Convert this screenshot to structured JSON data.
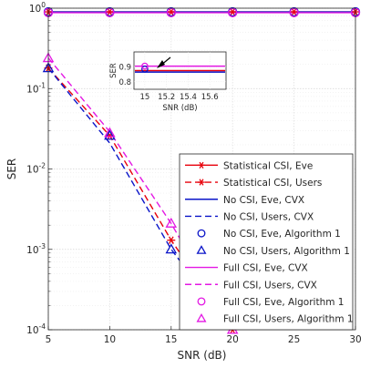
{
  "chart_data": {
    "type": "line",
    "xlabel": "SNR (dB)",
    "ylabel": "SER",
    "x_ticks": [
      5,
      10,
      15,
      20,
      25,
      30
    ],
    "y_ticks": [
      "10^-4",
      "10^-3",
      "10^-2",
      "10^-1",
      "10^0"
    ],
    "xlim": [
      5,
      30
    ],
    "ylim": [
      0.0001,
      1
    ],
    "yscale": "log",
    "grid": true,
    "legend_position": "inside lower-right",
    "series": [
      {
        "name": "Statistical CSI, Eve",
        "color": "#e8000b",
        "line": "solid",
        "marker": "asterisk",
        "x": [
          5,
          10,
          15,
          20,
          25,
          30
        ],
        "y": [
          0.9,
          0.9,
          0.9,
          0.9,
          0.9,
          0.9
        ]
      },
      {
        "name": "Statistical CSI, Users",
        "color": "#e8000b",
        "line": "dashed",
        "marker": "asterisk",
        "x": [
          5,
          10,
          15,
          20
        ],
        "y": [
          0.18,
          0.026,
          0.0013,
          0.0001
        ]
      },
      {
        "name": "No CSI, Eve, CVX",
        "color": "#0a14c8",
        "line": "solid",
        "marker": "none",
        "x": [
          5,
          10,
          15,
          20,
          25,
          30
        ],
        "y": [
          0.9,
          0.9,
          0.9,
          0.9,
          0.9,
          0.9
        ]
      },
      {
        "name": "No CSI, Users, CVX",
        "color": "#0a14c8",
        "line": "dashed",
        "marker": "none",
        "x": [
          5,
          10,
          15,
          20
        ],
        "y": [
          0.18,
          0.021,
          0.001,
          0.0001
        ]
      },
      {
        "name": "No CSI, Eve, Algorithm 1",
        "color": "#0a14c8",
        "line": "none",
        "marker": "circle",
        "x": [
          5,
          10,
          15,
          20,
          25,
          30
        ],
        "y": [
          0.9,
          0.9,
          0.9,
          0.9,
          0.9,
          0.9
        ]
      },
      {
        "name": "No CSI, Users, Algorithm 1",
        "color": "#0a14c8",
        "line": "none",
        "marker": "triangle",
        "x": [
          5,
          10,
          15
        ],
        "y": [
          0.18,
          0.026,
          0.001
        ]
      },
      {
        "name": "Full CSI, Eve, CVX",
        "color": "#e317e3",
        "line": "solid",
        "marker": "none",
        "x": [
          5,
          10,
          15,
          20,
          25,
          30
        ],
        "y": [
          0.88,
          0.88,
          0.88,
          0.88,
          0.88,
          0.88
        ]
      },
      {
        "name": "Full CSI, Users, CVX",
        "color": "#e317e3",
        "line": "dashed",
        "marker": "none",
        "x": [
          5,
          10,
          15,
          20
        ],
        "y": [
          0.24,
          0.029,
          0.0021,
          0.0001
        ]
      },
      {
        "name": "Full CSI, Eve, Algorithm 1",
        "color": "#e317e3",
        "line": "none",
        "marker": "circle",
        "x": [
          5,
          10,
          15,
          20,
          25,
          30
        ],
        "y": [
          0.88,
          0.88,
          0.88,
          0.88,
          0.88,
          0.88
        ]
      },
      {
        "name": "Full CSI, Users, Algorithm 1",
        "color": "#e317e3",
        "line": "none",
        "marker": "triangle",
        "x": [
          5,
          10,
          15,
          20
        ],
        "y": [
          0.24,
          0.028,
          0.0021,
          0.0001
        ]
      }
    ],
    "inset": {
      "xlabel": "SNR (dB)",
      "ylabel": "SER",
      "x_ticks": [
        "15",
        "15.2",
        "15.4",
        "15.6"
      ],
      "y_ticks": [
        "0.8",
        "0.9"
      ],
      "xlim": [
        14.9,
        15.75
      ],
      "ylim": [
        0.75,
        1.0
      ],
      "lines": [
        {
          "color": "#e8000b",
          "y": 0.875
        },
        {
          "color": "#0a14c8",
          "y": 0.865
        },
        {
          "color": "#e317e3",
          "y": 0.905
        }
      ],
      "markers": [
        {
          "x": 15,
          "y": 0.885,
          "color": "#0a14c8",
          "shape": "circle"
        },
        {
          "x": 15,
          "y": 0.905,
          "color": "#e317e3",
          "shape": "circle"
        }
      ]
    }
  }
}
